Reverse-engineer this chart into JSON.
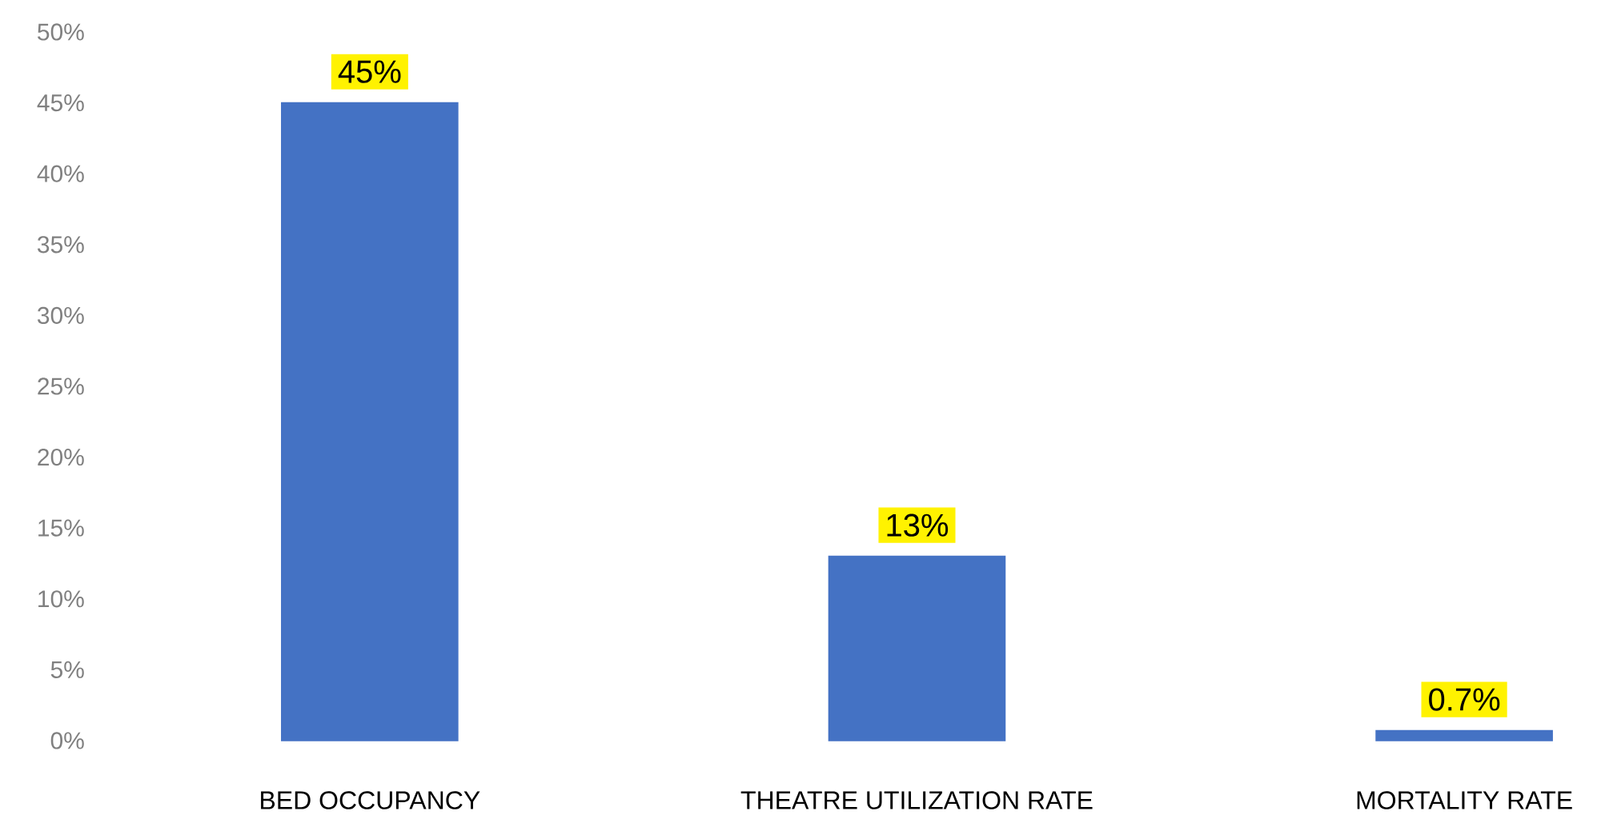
{
  "chart_data": {
    "type": "bar",
    "categories": [
      "BED OCCUPANCY",
      "THEATRE UTILIZATION RATE",
      "MORTALITY RATE"
    ],
    "values": [
      45,
      13,
      0.7
    ],
    "value_labels": [
      "45%",
      "13%",
      "0.7%"
    ],
    "color": "#4472c4",
    "ylim": [
      0,
      50
    ],
    "yticks": [
      {
        "value": 0,
        "label": "0%"
      },
      {
        "value": 5,
        "label": "5%"
      },
      {
        "value": 10,
        "label": "10%"
      },
      {
        "value": 15,
        "label": "15%"
      },
      {
        "value": 20,
        "label": "20%"
      },
      {
        "value": 25,
        "label": "25%"
      },
      {
        "value": 30,
        "label": "30%"
      },
      {
        "value": 35,
        "label": "35%"
      },
      {
        "value": 40,
        "label": "40%"
      },
      {
        "value": 45,
        "label": "45%"
      },
      {
        "value": 50,
        "label": "50%"
      }
    ],
    "grid": false
  }
}
